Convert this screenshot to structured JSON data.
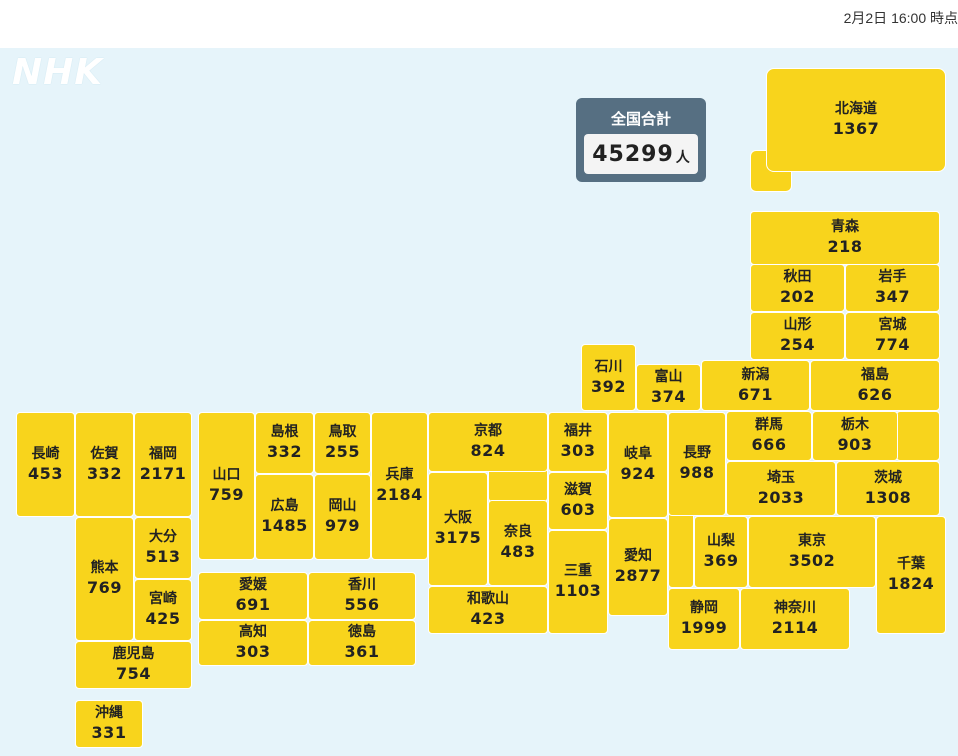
{
  "timestamp": "2月2日 16:00 時点",
  "logo": "NHK",
  "total": {
    "label": "全国合計",
    "value": "45299",
    "unit": "人"
  },
  "prefectures": {
    "hokkaido": {
      "name": "北海道",
      "count": "1367"
    },
    "aomori": {
      "name": "青森",
      "count": "218"
    },
    "akita": {
      "name": "秋田",
      "count": "202"
    },
    "iwate": {
      "name": "岩手",
      "count": "347"
    },
    "yamagata": {
      "name": "山形",
      "count": "254"
    },
    "miyagi": {
      "name": "宮城",
      "count": "774"
    },
    "ishikawa": {
      "name": "石川",
      "count": "392"
    },
    "toyama": {
      "name": "富山",
      "count": "374"
    },
    "niigata": {
      "name": "新潟",
      "count": "671"
    },
    "fukushima": {
      "name": "福島",
      "count": "626"
    },
    "nagasaki": {
      "name": "長崎",
      "count": "453"
    },
    "saga": {
      "name": "佐賀",
      "count": "332"
    },
    "fukuoka": {
      "name": "福岡",
      "count": "2171"
    },
    "yamaguchi": {
      "name": "山口",
      "count": "759"
    },
    "shimane": {
      "name": "島根",
      "count": "332"
    },
    "tottori": {
      "name": "鳥取",
      "count": "255"
    },
    "hyogo": {
      "name": "兵庫",
      "count": "2184"
    },
    "kyoto": {
      "name": "京都",
      "count": "824"
    },
    "fukui": {
      "name": "福井",
      "count": "303"
    },
    "gifu": {
      "name": "岐阜",
      "count": "924"
    },
    "nagano": {
      "name": "長野",
      "count": "988"
    },
    "gunma": {
      "name": "群馬",
      "count": "666"
    },
    "tochigi": {
      "name": "栃木",
      "count": "903"
    },
    "hiroshima": {
      "name": "広島",
      "count": "1485"
    },
    "okayama": {
      "name": "岡山",
      "count": "979"
    },
    "osaka": {
      "name": "大阪",
      "count": "3175"
    },
    "nara": {
      "name": "奈良",
      "count": "483"
    },
    "shiga": {
      "name": "滋賀",
      "count": "603"
    },
    "saitama": {
      "name": "埼玉",
      "count": "2033"
    },
    "ibaraki": {
      "name": "茨城",
      "count": "1308"
    },
    "oita": {
      "name": "大分",
      "count": "513"
    },
    "kumamoto": {
      "name": "熊本",
      "count": "769"
    },
    "miyazaki": {
      "name": "宮崎",
      "count": "425"
    },
    "yamanashi": {
      "name": "山梨",
      "count": "369"
    },
    "tokyo": {
      "name": "東京",
      "count": "3502"
    },
    "aichi": {
      "name": "愛知",
      "count": "2877"
    },
    "chiba": {
      "name": "千葉",
      "count": "1824"
    },
    "ehime": {
      "name": "愛媛",
      "count": "691"
    },
    "kagawa": {
      "name": "香川",
      "count": "556"
    },
    "mie": {
      "name": "三重",
      "count": "1103"
    },
    "wakayama": {
      "name": "和歌山",
      "count": "423"
    },
    "kochi": {
      "name": "高知",
      "count": "303"
    },
    "tokushima": {
      "name": "徳島",
      "count": "361"
    },
    "shizuoka": {
      "name": "静岡",
      "count": "1999"
    },
    "kanagawa": {
      "name": "神奈川",
      "count": "2114"
    },
    "kagoshima": {
      "name": "鹿児島",
      "count": "754"
    },
    "okinawa": {
      "name": "沖縄",
      "count": "331"
    }
  }
}
